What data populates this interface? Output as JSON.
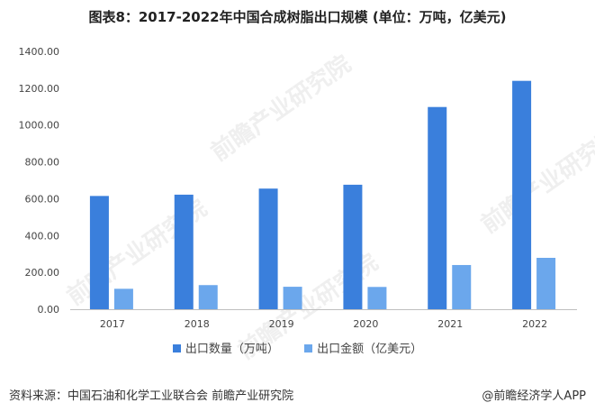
{
  "title": "图表8：2017-2022年中国合成树脂出口规模 (单位：万吨，亿美元)",
  "watermark": "前瞻产业研究院",
  "source": "资料来源：中国石油和化学工业联合会 前瞻产业研究院",
  "brand": "@前瞻经济学人APP",
  "colors": {
    "quantity": "#3a7fdc",
    "value": "#6ba7ec",
    "axis": "#999999",
    "text": "#444444"
  },
  "chart_data": {
    "type": "bar",
    "categories": [
      "2017",
      "2018",
      "2019",
      "2020",
      "2021",
      "2022"
    ],
    "series": [
      {
        "name": "出口数量（万吨）",
        "values": [
          615,
          622,
          655,
          676,
          1098,
          1240
        ]
      },
      {
        "name": "出口金额（亿美元）",
        "values": [
          111,
          131,
          122,
          121,
          240,
          279
        ]
      }
    ],
    "yticks": [
      "0.00",
      "200.00",
      "400.00",
      "600.00",
      "800.00",
      "1000.00",
      "1200.00",
      "1400.00"
    ],
    "ylim": [
      0,
      1400
    ],
    "grid": false,
    "legend_position": "bottom"
  }
}
